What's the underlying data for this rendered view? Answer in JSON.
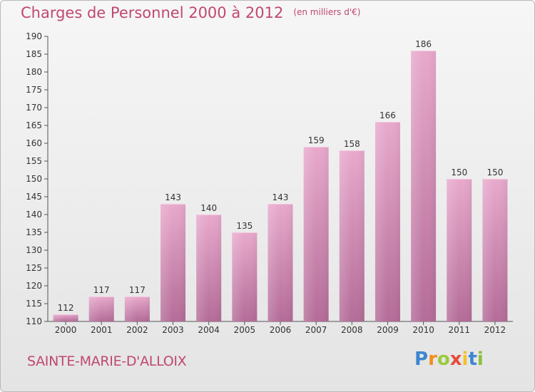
{
  "chart_data": {
    "type": "bar",
    "title": "Charges de Personnel 2000 à 2012",
    "subtitle": "(en milliers d'€)",
    "categories": [
      "2000",
      "2001",
      "2002",
      "2003",
      "2004",
      "2005",
      "2006",
      "2007",
      "2008",
      "2009",
      "2010",
      "2011",
      "2012"
    ],
    "values": [
      112,
      117,
      117,
      143,
      140,
      135,
      143,
      159,
      158,
      166,
      186,
      150,
      150
    ],
    "ylim": [
      110,
      190
    ],
    "yticks": [
      110,
      115,
      120,
      125,
      130,
      135,
      140,
      145,
      150,
      155,
      160,
      165,
      170,
      175,
      180,
      185,
      190
    ],
    "grid": false,
    "bar_color": "#d88fb5"
  },
  "commune": "SAINTE-MARIE-D'ALLOIX",
  "logo": {
    "text": "Proxiti",
    "letters": [
      "P",
      "r",
      "o",
      "x",
      "i",
      "t",
      "i"
    ],
    "colors": [
      "#3d86d0",
      "#f28e1d",
      "#9acb3c",
      "#e64b3b",
      "#f2c12e",
      "#3d86d0",
      "#8ac03f"
    ]
  }
}
